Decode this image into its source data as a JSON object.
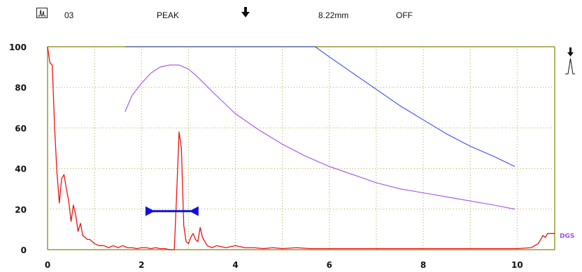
{
  "status_bar": {
    "mode_icon": "rf-pulse-icon",
    "channel": "03",
    "detect_mode": "PEAK",
    "gate_trigger_icon": "down-arrow-icon",
    "measurement": "8.22mm",
    "reject": "OFF"
  },
  "gate_end_icon": "gate-marker-icon",
  "dgs_label": "DGS",
  "colors": {
    "axis": "#9a9a30",
    "grid": "#a8a840",
    "echo": "#ee1111",
    "dgs_upper": "#3a4ee0",
    "dgs_lower": "#a050e8",
    "gate": "#1010dd"
  },
  "chart_data": {
    "type": "line",
    "xlim": [
      0,
      10.8
    ],
    "ylim": [
      0,
      100
    ],
    "x_ticks": [
      "0",
      "2",
      "4",
      "6",
      "8",
      "10"
    ],
    "y_ticks": [
      "100",
      "80",
      "60",
      "40",
      "20",
      "0"
    ],
    "grid": true,
    "gate": {
      "start": 2.1,
      "end": 3.2,
      "level": 19
    },
    "series": [
      {
        "key": "echo",
        "x": [
          0.0,
          0.05,
          0.1,
          0.15,
          0.2,
          0.25,
          0.3,
          0.35,
          0.4,
          0.45,
          0.5,
          0.55,
          0.6,
          0.65,
          0.7,
          0.75,
          0.8,
          0.85,
          0.9,
          0.95,
          1.0,
          1.1,
          1.2,
          1.3,
          1.4,
          1.5,
          1.6,
          1.7,
          1.8,
          1.9,
          2.0,
          2.1,
          2.2,
          2.3,
          2.4,
          2.5,
          2.6,
          2.65,
          2.7,
          2.75,
          2.8,
          2.85,
          2.9,
          2.95,
          3.0,
          3.05,
          3.1,
          3.15,
          3.2,
          3.25,
          3.3,
          3.4,
          3.5,
          3.6,
          3.8,
          4.0,
          4.2,
          4.4,
          4.6,
          4.8,
          5.0,
          5.3,
          5.6,
          6.0,
          6.5,
          7.0,
          7.5,
          8.0,
          8.5,
          9.0,
          9.5,
          10.0,
          10.3,
          10.45,
          10.5,
          10.55,
          10.6,
          10.65,
          10.7,
          10.8
        ],
        "y": [
          100,
          92,
          91,
          60,
          38,
          23,
          35,
          37,
          30,
          24,
          14,
          22,
          17,
          9,
          13,
          7,
          6,
          5,
          5,
          4,
          3,
          2,
          2,
          1,
          2,
          1,
          2,
          1,
          1,
          0.5,
          1,
          1,
          0.5,
          1,
          0.5,
          0.5,
          0,
          0,
          0,
          28,
          58,
          50,
          12,
          4,
          3,
          6,
          8,
          5,
          4,
          11,
          6,
          2,
          1,
          2,
          1,
          2,
          1,
          1,
          0.5,
          1,
          0.5,
          1,
          0.5,
          0.5,
          0.5,
          0.5,
          0.5,
          0.5,
          0.5,
          0.5,
          0.5,
          0.5,
          1,
          3,
          5,
          7,
          6,
          8,
          8,
          8
        ]
      },
      {
        "key": "dgs_upper",
        "x": [
          1.65,
          2.0,
          2.5,
          3.0,
          3.5,
          4.0,
          4.5,
          5.0,
          5.5,
          5.7,
          6.0,
          6.5,
          7.0,
          7.5,
          8.0,
          8.5,
          9.0,
          9.5,
          9.95
        ],
        "y": [
          100,
          100,
          100,
          100,
          100,
          100,
          100,
          100,
          100,
          100,
          95,
          87,
          79,
          71,
          64,
          57,
          51,
          46,
          41
        ]
      },
      {
        "key": "dgs_lower",
        "x": [
          1.65,
          1.8,
          2.0,
          2.2,
          2.4,
          2.6,
          2.8,
          3.0,
          3.2,
          3.5,
          4.0,
          4.5,
          5.0,
          5.5,
          6.0,
          6.5,
          7.0,
          7.5,
          8.0,
          8.5,
          9.0,
          9.5,
          9.95
        ],
        "y": [
          68,
          76,
          82,
          87,
          90,
          91,
          91,
          89,
          85,
          78,
          67,
          59,
          52,
          46,
          41,
          37,
          33,
          30,
          28,
          26,
          24,
          22,
          20
        ]
      }
    ]
  }
}
